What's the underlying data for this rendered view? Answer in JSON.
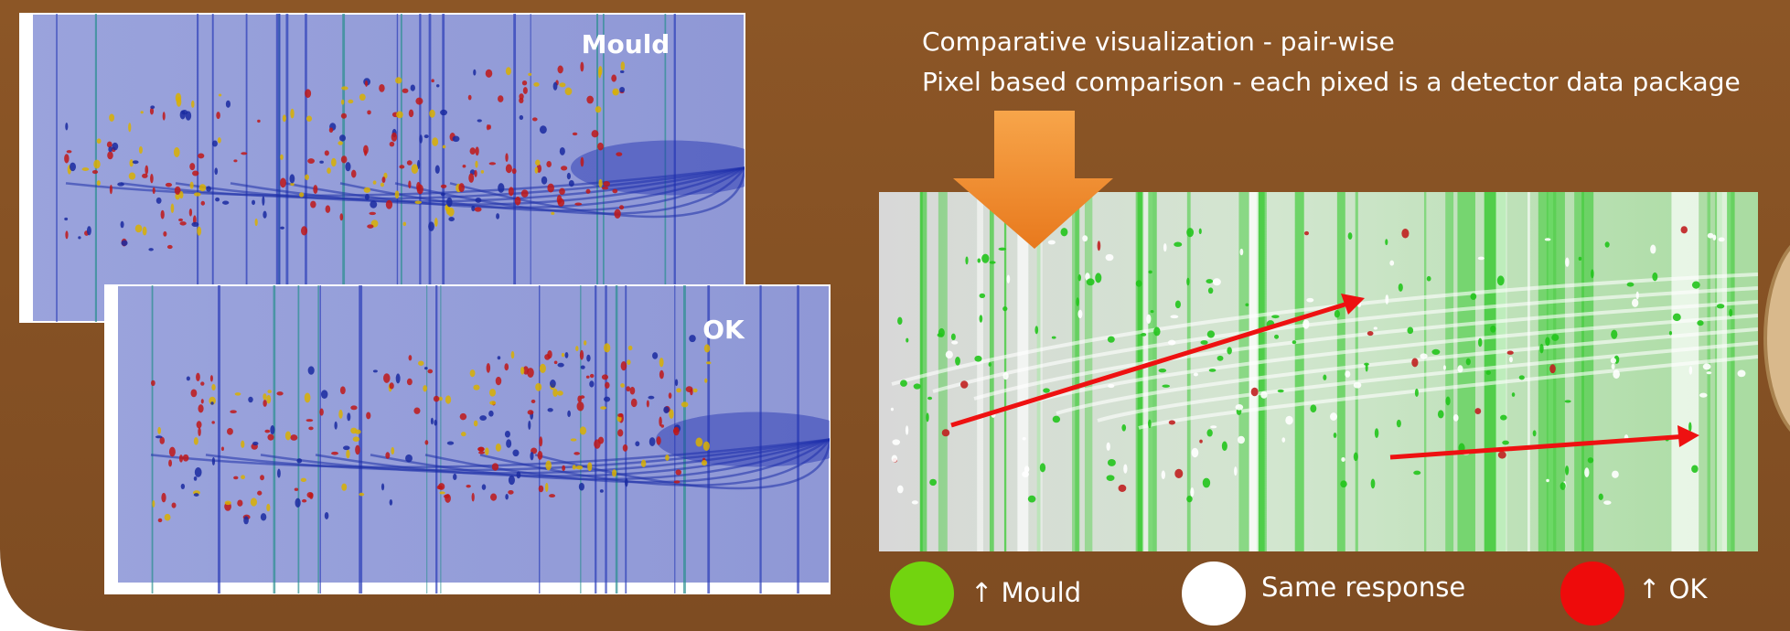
{
  "panels": [
    {
      "label": "Mould"
    },
    {
      "label": "OK"
    }
  ],
  "description": [
    "Comparative visualization - pair-wise",
    "Pixel based comparison - each pixed is a detector data package"
  ],
  "legend": [
    {
      "label": "↑ Mould"
    },
    {
      "label": "Same response"
    },
    {
      "label": "↑ OK"
    }
  ]
}
